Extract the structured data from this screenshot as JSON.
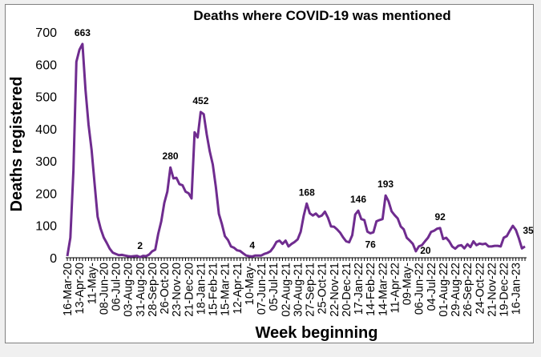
{
  "chart_data": {
    "type": "line",
    "title": "Deaths where COVID-19 was mentioned",
    "xlabel": "Week beginning",
    "ylabel": "Deaths registered",
    "ylim": [
      0,
      700
    ],
    "yticks": [
      0,
      100,
      200,
      300,
      400,
      500,
      600,
      700
    ],
    "grid": false,
    "line_color": "#6f2c8f",
    "x_start": "16-Mar-20",
    "x_interval": "weekly",
    "xtick_labels": [
      "16-Mar-20",
      "13-Apr-20",
      "11-May-",
      "08-Jun-20",
      "06-Jul-20",
      "03-Aug-20",
      "31-Aug-20",
      "28-Sep-20",
      "26-Oct-20",
      "23-Nov-20",
      "21-Dec-20",
      "18-Jan-21",
      "15-Feb-21",
      "15-Mar-21",
      "12-Apr-21",
      "10-May-",
      "07-Jun-21",
      "05-Jul-21",
      "02-Aug-21",
      "30-Aug-21",
      "27-Sep-21",
      "25-Oct-21",
      "22-Nov-21",
      "20-Dec-21",
      "17-Jan-22",
      "14-Feb-22",
      "14-Mar-22",
      "11-Apr-22",
      "09-May-",
      "06-Jun-22",
      "04-Jul-22",
      "01-Aug-22",
      "29-Aug-22",
      "26-Sep-22",
      "24-Oct-22",
      "21-Nov-22",
      "19-Dec-22",
      "16-Jan-23"
    ],
    "xtick_every_weeks": 4,
    "values": [
      5,
      62,
      270,
      608,
      645,
      663,
      520,
      412,
      334,
      230,
      127,
      90,
      63,
      46,
      28,
      16,
      12,
      8,
      9,
      7,
      5,
      4,
      5,
      6,
      2,
      6,
      5,
      10,
      20,
      25,
      74,
      113,
      170,
      205,
      280,
      246,
      248,
      228,
      225,
      205,
      200,
      184,
      389,
      373,
      452,
      445,
      383,
      330,
      289,
      220,
      136,
      104,
      67,
      55,
      35,
      31,
      23,
      21,
      14,
      7,
      5,
      4,
      7,
      7,
      7,
      12,
      15,
      20,
      32,
      49,
      53,
      43,
      53,
      35,
      43,
      49,
      57,
      81,
      131,
      168,
      138,
      131,
      137,
      127,
      131,
      143,
      124,
      97,
      96,
      88,
      78,
      63,
      51,
      48,
      70,
      134,
      146,
      120,
      117,
      81,
      76,
      79,
      113,
      117,
      120,
      193,
      175,
      144,
      132,
      122,
      97,
      88,
      62,
      53,
      43,
      20,
      35,
      39,
      51,
      62,
      80,
      84,
      90,
      92,
      58,
      62,
      51,
      35,
      28,
      37,
      39,
      29,
      42,
      33,
      51,
      39,
      44,
      42,
      44,
      35,
      35,
      37,
      37,
      35,
      62,
      67,
      84,
      99,
      86,
      60,
      29,
      35
    ],
    "annotations": [
      {
        "week": 5,
        "label": "663",
        "pos": "above"
      },
      {
        "week": 24,
        "label": "2",
        "pos": "above"
      },
      {
        "week": 34,
        "label": "280",
        "pos": "above"
      },
      {
        "week": 44,
        "label": "452",
        "pos": "above"
      },
      {
        "week": 61,
        "label": "4",
        "pos": "above"
      },
      {
        "week": 79,
        "label": "168",
        "pos": "above"
      },
      {
        "week": 96,
        "label": "146",
        "pos": "above"
      },
      {
        "week": 100,
        "label": "76",
        "pos": "below"
      },
      {
        "week": 105,
        "label": "193",
        "pos": "above"
      },
      {
        "week": 115,
        "label": "20",
        "pos": "below"
      },
      {
        "week": 123,
        "label": "92",
        "pos": "above"
      },
      {
        "week": 151,
        "label": "35",
        "pos": "above"
      }
    ]
  }
}
